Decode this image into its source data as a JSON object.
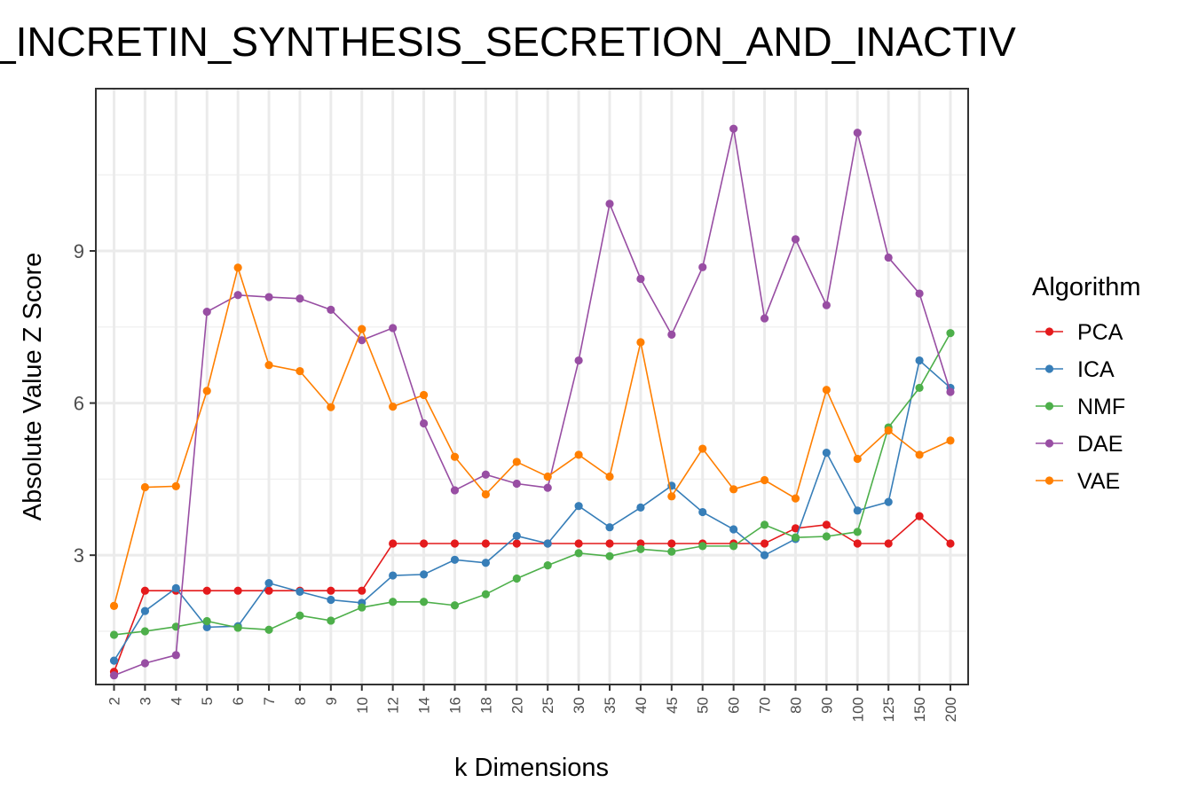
{
  "chart_data": {
    "type": "line",
    "title": "_INCRETIN_SYNTHESIS_SECRETION_AND_INACTIV",
    "xlabel": "k Dimensions",
    "ylabel": "Absolute Value Z Score",
    "categories": [
      "2",
      "3",
      "4",
      "5",
      "6",
      "7",
      "8",
      "9",
      "10",
      "12",
      "14",
      "16",
      "18",
      "20",
      "25",
      "30",
      "35",
      "40",
      "45",
      "50",
      "60",
      "70",
      "80",
      "90",
      "100",
      "125",
      "150",
      "200"
    ],
    "y_ticks": [
      "3",
      "6",
      "9"
    ],
    "ylim": [
      0.45,
      12.2
    ],
    "grid": true,
    "legend": {
      "title": "Algorithm",
      "position": "right"
    },
    "series": [
      {
        "name": "PCA",
        "color": "#e41a1c",
        "values": [
          0.7,
          2.3,
          2.3,
          2.3,
          2.3,
          2.3,
          2.3,
          2.3,
          2.3,
          3.23,
          3.23,
          3.23,
          3.23,
          3.23,
          3.23,
          3.23,
          3.23,
          3.23,
          3.23,
          3.23,
          3.23,
          3.23,
          3.53,
          3.6,
          3.23,
          3.23,
          3.77,
          3.23
        ]
      },
      {
        "name": "ICA",
        "color": "#377eb8",
        "values": [
          0.92,
          1.9,
          2.35,
          1.58,
          1.6,
          2.45,
          2.28,
          2.12,
          2.06,
          2.6,
          2.62,
          2.91,
          2.85,
          3.38,
          3.23,
          3.97,
          3.55,
          3.94,
          4.37,
          3.85,
          3.51,
          3.0,
          3.32,
          5.02,
          3.88,
          4.05,
          6.84,
          6.3
        ]
      },
      {
        "name": "NMF",
        "color": "#4daf4a",
        "values": [
          1.43,
          1.5,
          1.59,
          1.7,
          1.57,
          1.53,
          1.81,
          1.71,
          1.97,
          2.08,
          2.08,
          2.01,
          2.23,
          2.54,
          2.8,
          3.04,
          2.98,
          3.12,
          3.07,
          3.18,
          3.18,
          3.6,
          3.35,
          3.37,
          3.46,
          5.52,
          6.3,
          7.38
        ]
      },
      {
        "name": "DAE",
        "color": "#984ea3",
        "values": [
          0.63,
          0.87,
          1.03,
          7.8,
          8.13,
          8.09,
          8.06,
          7.84,
          7.24,
          7.48,
          5.6,
          4.28,
          4.59,
          4.41,
          4.33,
          6.84,
          9.93,
          8.45,
          7.35,
          8.68,
          11.41,
          7.67,
          9.23,
          7.93,
          11.33,
          8.87,
          8.16,
          6.22
        ]
      },
      {
        "name": "VAE",
        "color": "#ff7f00",
        "values": [
          2.0,
          4.34,
          4.36,
          6.24,
          8.67,
          6.75,
          6.63,
          5.92,
          7.46,
          5.93,
          6.16,
          4.94,
          4.2,
          4.84,
          4.55,
          4.98,
          4.55,
          7.2,
          4.16,
          5.1,
          4.3,
          4.48,
          4.12,
          6.26,
          4.9,
          5.46,
          4.98,
          5.26
        ]
      }
    ]
  }
}
